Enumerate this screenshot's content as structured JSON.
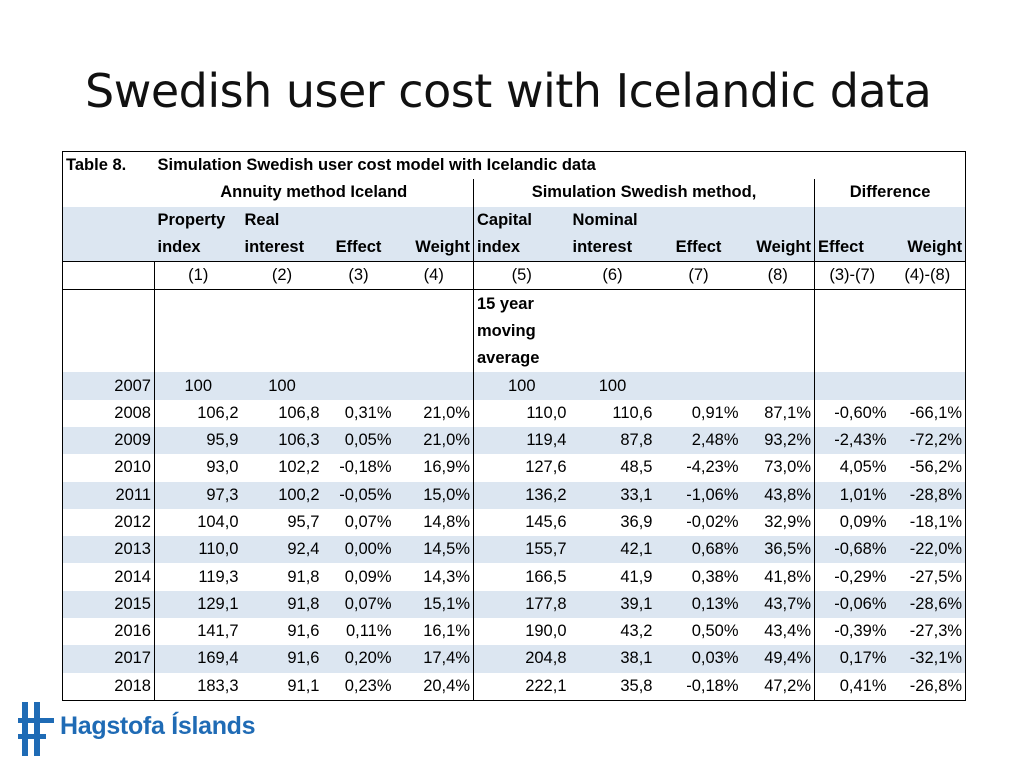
{
  "title": "Swedish user cost with Icelandic data",
  "table": {
    "label": "Table 8.",
    "caption": "Simulation Swedish user cost model with Icelandic data",
    "group_iceland": "Annuity method Iceland",
    "group_sweden": "Simulation Swedish method,",
    "group_diff": "Difference",
    "col_top": [
      "Property",
      "Real",
      "",
      "",
      "Capital",
      "Nominal",
      "",
      "",
      "",
      ""
    ],
    "col_bottom": [
      "index",
      "interest",
      "Effect",
      "Weight",
      "index",
      "interest",
      "Effect",
      "Weight",
      "Effect",
      "Weight"
    ],
    "col_numbers": [
      "(1)",
      "(2)",
      "(3)",
      "(4)",
      "(5)",
      "(6)",
      "(7)",
      "(8)",
      "(3)-(7)",
      "(4)-(8)"
    ],
    "note_lines": [
      "15 year",
      "moving",
      "average"
    ],
    "rows": [
      [
        "2007",
        "100",
        "100",
        "",
        "",
        "100",
        "100",
        "",
        "",
        "",
        ""
      ],
      [
        "2008",
        "106,2",
        "106,8",
        "0,31%",
        "21,0%",
        "110,0",
        "110,6",
        "0,91%",
        "87,1%",
        "-0,60%",
        "-66,1%"
      ],
      [
        "2009",
        "95,9",
        "106,3",
        "0,05%",
        "21,0%",
        "119,4",
        "87,8",
        "2,48%",
        "93,2%",
        "-2,43%",
        "-72,2%"
      ],
      [
        "2010",
        "93,0",
        "102,2",
        "-0,18%",
        "16,9%",
        "127,6",
        "48,5",
        "-4,23%",
        "73,0%",
        "4,05%",
        "-56,2%"
      ],
      [
        "2011",
        "97,3",
        "100,2",
        "-0,05%",
        "15,0%",
        "136,2",
        "33,1",
        "-1,06%",
        "43,8%",
        "1,01%",
        "-28,8%"
      ],
      [
        "2012",
        "104,0",
        "95,7",
        "0,07%",
        "14,8%",
        "145,6",
        "36,9",
        "-0,02%",
        "32,9%",
        "0,09%",
        "-18,1%"
      ],
      [
        "2013",
        "110,0",
        "92,4",
        "0,00%",
        "14,5%",
        "155,7",
        "42,1",
        "0,68%",
        "36,5%",
        "-0,68%",
        "-22,0%"
      ],
      [
        "2014",
        "119,3",
        "91,8",
        "0,09%",
        "14,3%",
        "166,5",
        "41,9",
        "0,38%",
        "41,8%",
        "-0,29%",
        "-27,5%"
      ],
      [
        "2015",
        "129,1",
        "91,8",
        "0,07%",
        "15,1%",
        "177,8",
        "39,1",
        "0,13%",
        "43,7%",
        "-0,06%",
        "-28,6%"
      ],
      [
        "2016",
        "141,7",
        "91,6",
        "0,11%",
        "16,1%",
        "190,0",
        "43,2",
        "0,50%",
        "43,4%",
        "-0,39%",
        "-27,3%"
      ],
      [
        "2017",
        "169,4",
        "91,6",
        "0,20%",
        "17,4%",
        "204,8",
        "38,1",
        "0,03%",
        "49,4%",
        "0,17%",
        "-32,1%"
      ],
      [
        "2018",
        "183,3",
        "91,1",
        "0,23%",
        "20,4%",
        "222,1",
        "35,8",
        "-0,18%",
        "47,2%",
        "0,41%",
        "-26,8%"
      ]
    ]
  },
  "logo": {
    "text": "Hagstofa Íslands",
    "color": "#1f6bb5",
    "icon": "hagstofa-logo-icon"
  },
  "colors": {
    "band": "#dce6f1"
  }
}
